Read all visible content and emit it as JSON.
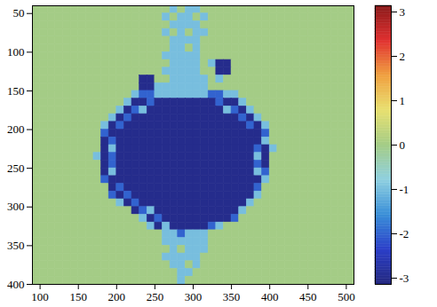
{
  "chart_data": {
    "type": "heatmap",
    "x": [
      95,
      105,
      115,
      125,
      135,
      145,
      155,
      165,
      175,
      185,
      195,
      205,
      215,
      225,
      235,
      245,
      255,
      265,
      275,
      285,
      295,
      305,
      315,
      325,
      335,
      345,
      355,
      365,
      375,
      385,
      395,
      405,
      415,
      425,
      435,
      445,
      455,
      465,
      475,
      485,
      495,
      505
    ],
    "y": [
      45,
      55,
      65,
      75,
      85,
      95,
      105,
      115,
      125,
      135,
      145,
      155,
      165,
      175,
      185,
      195,
      205,
      215,
      225,
      235,
      245,
      255,
      265,
      275,
      285,
      295,
      305,
      315,
      325,
      335,
      345,
      355,
      365,
      375,
      385,
      395
    ],
    "z": [
      [
        0,
        0,
        0,
        0,
        0,
        0,
        0,
        0,
        0,
        0,
        0,
        0,
        0,
        0,
        0,
        0,
        0,
        0,
        -1,
        0,
        -1,
        -1,
        0,
        0,
        0,
        0,
        0,
        0,
        0,
        0,
        0,
        0,
        0,
        0,
        0,
        0,
        0,
        0,
        0,
        0,
        0,
        0
      ],
      [
        0,
        0,
        0,
        0,
        0,
        0,
        0,
        0,
        0,
        0,
        0,
        0,
        0,
        0,
        0,
        0,
        0,
        -1,
        0,
        -1,
        -1,
        0,
        -1,
        0,
        0,
        0,
        0,
        0,
        0,
        0,
        0,
        0,
        0,
        0,
        0,
        0,
        0,
        0,
        0,
        0,
        0,
        0
      ],
      [
        0,
        0,
        0,
        0,
        0,
        0,
        0,
        0,
        0,
        0,
        0,
        0,
        0,
        0,
        0,
        0,
        0,
        0,
        -1,
        -1,
        -1,
        -1,
        0,
        0,
        0,
        0,
        0,
        0,
        0,
        0,
        0,
        0,
        0,
        0,
        0,
        0,
        0,
        0,
        0,
        0,
        0,
        0
      ],
      [
        0,
        0,
        0,
        0,
        0,
        0,
        0,
        0,
        0,
        0,
        0,
        0,
        0,
        0,
        0,
        0,
        0,
        -1,
        0,
        -1,
        0,
        -1,
        -1,
        0,
        0,
        0,
        0,
        0,
        0,
        0,
        0,
        0,
        0,
        0,
        0,
        0,
        0,
        0,
        0,
        0,
        0,
        0
      ],
      [
        0,
        0,
        0,
        0,
        0,
        0,
        0,
        0,
        0,
        0,
        0,
        0,
        0,
        0,
        0,
        0,
        0,
        0,
        -1,
        -1,
        -1,
        -1,
        0,
        0,
        0,
        0,
        0,
        0,
        0,
        0,
        0,
        0,
        0,
        0,
        0,
        0,
        0,
        0,
        0,
        0,
        0,
        0
      ],
      [
        0,
        0,
        0,
        0,
        0,
        0,
        0,
        0,
        0,
        0,
        0,
        0,
        0,
        0,
        0,
        0,
        0,
        0,
        -1,
        -1,
        0,
        -1,
        0,
        0,
        0,
        0,
        0,
        0,
        0,
        0,
        0,
        0,
        0,
        0,
        0,
        0,
        0,
        0,
        0,
        0,
        0,
        0
      ],
      [
        0,
        0,
        0,
        0,
        0,
        0,
        0,
        0,
        0,
        0,
        0,
        0,
        0,
        0,
        0,
        0,
        0,
        -1,
        -1,
        -1,
        -1,
        -1,
        0,
        0,
        0,
        0,
        0,
        0,
        0,
        0,
        0,
        0,
        0,
        0,
        0,
        0,
        0,
        0,
        0,
        0,
        0,
        0
      ],
      [
        0,
        0,
        0,
        0,
        0,
        0,
        0,
        0,
        0,
        0,
        0,
        0,
        0,
        0,
        0,
        0,
        0,
        0,
        -1,
        -1,
        -1,
        -1,
        0,
        -1,
        -3,
        -3,
        0,
        0,
        0,
        0,
        0,
        0,
        0,
        0,
        0,
        0,
        0,
        0,
        0,
        0,
        0,
        0
      ],
      [
        0,
        0,
        0,
        0,
        0,
        0,
        0,
        0,
        0,
        0,
        0,
        0,
        0,
        0,
        0,
        0,
        0,
        -1,
        -1,
        -1,
        -1,
        -1,
        0,
        0,
        -3,
        -3,
        0,
        0,
        0,
        0,
        0,
        0,
        0,
        0,
        0,
        0,
        0,
        0,
        0,
        0,
        0,
        0
      ],
      [
        0,
        0,
        0,
        0,
        0,
        0,
        0,
        0,
        0,
        0,
        0,
        0,
        0,
        0,
        -3,
        -3,
        0,
        0,
        -1,
        -1,
        -1,
        -1,
        -1,
        0,
        -1,
        0,
        0,
        0,
        0,
        0,
        0,
        0,
        0,
        0,
        0,
        0,
        0,
        0,
        0,
        0,
        0,
        0
      ],
      [
        0,
        0,
        0,
        0,
        0,
        0,
        0,
        0,
        0,
        0,
        0,
        0,
        0,
        0,
        -3,
        -3,
        -1,
        -1,
        -1,
        -1,
        -1,
        -1,
        -1,
        0,
        0,
        0,
        0,
        0,
        0,
        0,
        0,
        0,
        0,
        0,
        0,
        0,
        0,
        0,
        0,
        0,
        0,
        0
      ],
      [
        0,
        0,
        0,
        0,
        0,
        0,
        0,
        0,
        0,
        0,
        0,
        0,
        0,
        -1,
        -2,
        -2,
        -1,
        -1,
        -1,
        -1,
        -1,
        -1,
        -1,
        -2,
        -2,
        -1,
        -1,
        0,
        0,
        0,
        0,
        0,
        0,
        0,
        0,
        0,
        0,
        0,
        0,
        0,
        0,
        0
      ],
      [
        0,
        0,
        0,
        0,
        0,
        0,
        0,
        0,
        0,
        0,
        0,
        0,
        -1,
        -3,
        -3,
        -2,
        -3,
        -3,
        -3,
        -3,
        -3,
        -3,
        -3,
        -3,
        -2,
        -3,
        -3,
        -1,
        0,
        0,
        0,
        0,
        0,
        0,
        0,
        0,
        0,
        0,
        0,
        0,
        0,
        0
      ],
      [
        0,
        0,
        0,
        0,
        0,
        0,
        0,
        0,
        0,
        0,
        0,
        -1,
        -3,
        -2,
        -1,
        -3,
        -3,
        -3,
        -3,
        -3,
        -3,
        -3,
        -3,
        -3,
        -3,
        -1,
        -2,
        -3,
        -1,
        0,
        0,
        0,
        0,
        0,
        0,
        0,
        0,
        0,
        0,
        0,
        0,
        0
      ],
      [
        0,
        0,
        0,
        0,
        0,
        0,
        0,
        0,
        0,
        0,
        -1,
        -3,
        -2,
        -3,
        -3,
        -3,
        -3,
        -3,
        -3,
        -3,
        -3,
        -3,
        -3,
        -3,
        -3,
        -3,
        -3,
        -2,
        -3,
        -1,
        0,
        0,
        0,
        0,
        0,
        0,
        0,
        0,
        0,
        0,
        0,
        0
      ],
      [
        0,
        0,
        0,
        0,
        0,
        0,
        0,
        0,
        0,
        -1,
        -3,
        -2,
        -3,
        -3,
        -3,
        -3,
        -3,
        -3,
        -3,
        -3,
        -3,
        -3,
        -3,
        -3,
        -3,
        -3,
        -3,
        -3,
        -2,
        -3,
        -1,
        0,
        0,
        0,
        0,
        0,
        0,
        0,
        0,
        0,
        0,
        0
      ],
      [
        0,
        0,
        0,
        0,
        0,
        0,
        0,
        0,
        0,
        -2,
        -3,
        -3,
        -3,
        -3,
        -3,
        -3,
        -3,
        -3,
        -3,
        -3,
        -3,
        -3,
        -3,
        -3,
        -3,
        -3,
        -3,
        -3,
        -3,
        -3,
        -2,
        0,
        0,
        0,
        0,
        0,
        0,
        0,
        0,
        0,
        0,
        0
      ],
      [
        0,
        0,
        0,
        0,
        0,
        0,
        0,
        0,
        0,
        -3,
        -2,
        -3,
        -3,
        -3,
        -3,
        -3,
        -3,
        -3,
        -3,
        -3,
        -3,
        -3,
        -3,
        -3,
        -3,
        -3,
        -3,
        -3,
        -3,
        -3,
        -1,
        0,
        0,
        0,
        0,
        0,
        0,
        0,
        0,
        0,
        0,
        0
      ],
      [
        0,
        0,
        0,
        0,
        0,
        0,
        0,
        0,
        0,
        -3,
        -1,
        -3,
        -3,
        -3,
        -3,
        -3,
        -3,
        -3,
        -3,
        -3,
        -3,
        -3,
        -3,
        -3,
        -3,
        -3,
        -3,
        -3,
        -3,
        -2,
        -3,
        -1,
        0,
        0,
        0,
        0,
        0,
        0,
        0,
        0,
        0,
        0
      ],
      [
        0,
        0,
        0,
        0,
        0,
        0,
        0,
        0,
        -1,
        -3,
        -2,
        -3,
        -3,
        -3,
        -3,
        -3,
        -3,
        -3,
        -3,
        -3,
        -3,
        -3,
        -3,
        -3,
        -3,
        -3,
        -3,
        -3,
        -3,
        -1,
        -3,
        0,
        0,
        0,
        0,
        0,
        0,
        0,
        0,
        0,
        0,
        0
      ],
      [
        0,
        0,
        0,
        0,
        0,
        0,
        0,
        0,
        0,
        -3,
        -2,
        -3,
        -3,
        -3,
        -3,
        -3,
        -3,
        -3,
        -3,
        -3,
        -3,
        -3,
        -3,
        -3,
        -3,
        -3,
        -3,
        -3,
        -3,
        -2,
        -3,
        0,
        0,
        0,
        0,
        0,
        0,
        0,
        0,
        0,
        0,
        0
      ],
      [
        0,
        0,
        0,
        0,
        0,
        0,
        0,
        0,
        0,
        -3,
        -1,
        -3,
        -3,
        -3,
        -3,
        -3,
        -3,
        -3,
        -3,
        -3,
        -3,
        -3,
        -3,
        -3,
        -3,
        -3,
        -3,
        -3,
        -3,
        -1,
        -2,
        0,
        0,
        0,
        0,
        0,
        0,
        0,
        0,
        0,
        0,
        0
      ],
      [
        0,
        0,
        0,
        0,
        0,
        0,
        0,
        0,
        0,
        -2,
        -3,
        -3,
        -3,
        -3,
        -3,
        -3,
        -3,
        -3,
        -3,
        -3,
        -3,
        -3,
        -3,
        -3,
        -3,
        -3,
        -3,
        -3,
        -3,
        -3,
        -1,
        0,
        0,
        0,
        0,
        0,
        0,
        0,
        0,
        0,
        0,
        0
      ],
      [
        0,
        0,
        0,
        0,
        0,
        0,
        0,
        0,
        0,
        0,
        -3,
        -2,
        -3,
        -3,
        -3,
        -3,
        -3,
        -3,
        -3,
        -3,
        -3,
        -3,
        -3,
        -3,
        -3,
        -3,
        -3,
        -3,
        -3,
        -2,
        0,
        0,
        0,
        0,
        0,
        0,
        0,
        0,
        0,
        0,
        0,
        0
      ],
      [
        0,
        0,
        0,
        0,
        0,
        0,
        0,
        0,
        0,
        0,
        -2,
        -3,
        -2,
        -3,
        -3,
        -3,
        -3,
        -3,
        -3,
        -3,
        -3,
        -3,
        -3,
        -3,
        -3,
        -3,
        -3,
        -3,
        -3,
        -1,
        0,
        0,
        0,
        0,
        0,
        0,
        0,
        0,
        0,
        0,
        0,
        0
      ],
      [
        0,
        0,
        0,
        0,
        0,
        0,
        0,
        0,
        0,
        0,
        0,
        -1,
        -3,
        -2,
        -3,
        -3,
        -3,
        -3,
        -3,
        -3,
        -3,
        -3,
        -3,
        -3,
        -3,
        -3,
        -3,
        -3,
        -1,
        0,
        0,
        0,
        0,
        0,
        0,
        0,
        0,
        0,
        0,
        0,
        0,
        0
      ],
      [
        0,
        0,
        0,
        0,
        0,
        0,
        0,
        0,
        0,
        0,
        0,
        0,
        0,
        -3,
        -2,
        -1,
        -3,
        -3,
        -3,
        -3,
        -3,
        -3,
        -3,
        -3,
        -3,
        -3,
        -3,
        -1,
        0,
        0,
        0,
        0,
        0,
        0,
        0,
        0,
        0,
        0,
        0,
        0,
        0,
        0
      ],
      [
        0,
        0,
        0,
        0,
        0,
        0,
        0,
        0,
        0,
        0,
        0,
        0,
        0,
        0,
        -1,
        -3,
        -2,
        -3,
        -3,
        -3,
        -3,
        -3,
        -3,
        -3,
        -3,
        -3,
        -2,
        0,
        0,
        0,
        0,
        0,
        0,
        0,
        0,
        0,
        0,
        0,
        0,
        0,
        0,
        0
      ],
      [
        0,
        0,
        0,
        0,
        0,
        0,
        0,
        0,
        0,
        0,
        0,
        0,
        0,
        0,
        0,
        -1,
        -3,
        -1,
        -3,
        -3,
        -3,
        -3,
        -3,
        -2,
        -1,
        0,
        0,
        0,
        0,
        0,
        0,
        0,
        0,
        0,
        0,
        0,
        0,
        0,
        0,
        0,
        0,
        0
      ],
      [
        0,
        0,
        0,
        0,
        0,
        0,
        0,
        0,
        0,
        0,
        0,
        0,
        0,
        0,
        0,
        0,
        0,
        -1,
        -1,
        -2,
        -1,
        -1,
        -1,
        0,
        0,
        0,
        0,
        0,
        0,
        0,
        0,
        0,
        0,
        0,
        0,
        0,
        0,
        0,
        0,
        0,
        0,
        0
      ],
      [
        0,
        0,
        0,
        0,
        0,
        0,
        0,
        0,
        0,
        0,
        0,
        0,
        0,
        0,
        0,
        0,
        0,
        -1,
        -1,
        -1,
        -1,
        -1,
        -1,
        0,
        0,
        0,
        0,
        0,
        0,
        0,
        0,
        0,
        0,
        0,
        0,
        0,
        0,
        0,
        0,
        0,
        0,
        0
      ],
      [
        0,
        0,
        0,
        0,
        0,
        0,
        0,
        0,
        0,
        0,
        0,
        0,
        0,
        0,
        0,
        0,
        0,
        0,
        -1,
        0,
        -1,
        -1,
        -1,
        0,
        0,
        0,
        0,
        0,
        0,
        0,
        0,
        0,
        0,
        0,
        0,
        0,
        0,
        0,
        0,
        0,
        0,
        0
      ],
      [
        0,
        0,
        0,
        0,
        0,
        0,
        0,
        0,
        0,
        0,
        0,
        0,
        0,
        0,
        0,
        0,
        0,
        -1,
        -1,
        -1,
        -1,
        -1,
        0,
        0,
        0,
        0,
        0,
        0,
        0,
        0,
        0,
        0,
        0,
        0,
        0,
        0,
        0,
        0,
        0,
        0,
        0,
        0
      ],
      [
        0,
        0,
        0,
        0,
        0,
        0,
        0,
        0,
        0,
        0,
        0,
        0,
        0,
        0,
        0,
        0,
        0,
        0,
        -1,
        -1,
        0,
        -1,
        0,
        0,
        0,
        0,
        0,
        0,
        0,
        0,
        0,
        0,
        0,
        0,
        0,
        0,
        0,
        0,
        0,
        0,
        0,
        0
      ],
      [
        0,
        0,
        0,
        0,
        0,
        0,
        0,
        0,
        0,
        0,
        0,
        0,
        0,
        0,
        0,
        0,
        0,
        0,
        0,
        -1,
        -1,
        0,
        0,
        0,
        0,
        0,
        0,
        0,
        0,
        0,
        0,
        0,
        0,
        0,
        0,
        0,
        0,
        0,
        0,
        0,
        0,
        0
      ],
      [
        0,
        0,
        0,
        0,
        0,
        0,
        0,
        0,
        0,
        0,
        0,
        0,
        0,
        0,
        0,
        0,
        0,
        0,
        0,
        -1,
        0,
        0,
        0,
        0,
        0,
        0,
        0,
        0,
        0,
        0,
        0,
        0,
        0,
        0,
        0,
        0,
        0,
        0,
        0,
        0,
        0,
        0
      ]
    ],
    "xlim": [
      90,
      510
    ],
    "ylim": [
      400,
      40
    ],
    "xticks": [
      100,
      150,
      200,
      250,
      300,
      350,
      400,
      450,
      500
    ],
    "yticks": [
      50,
      100,
      150,
      200,
      250,
      300,
      350,
      400
    ],
    "colorbar": {
      "range": [
        -3.14,
        3.14
      ],
      "ticks": [
        -3,
        -2,
        -1,
        0,
        1,
        2,
        3
      ]
    }
  }
}
